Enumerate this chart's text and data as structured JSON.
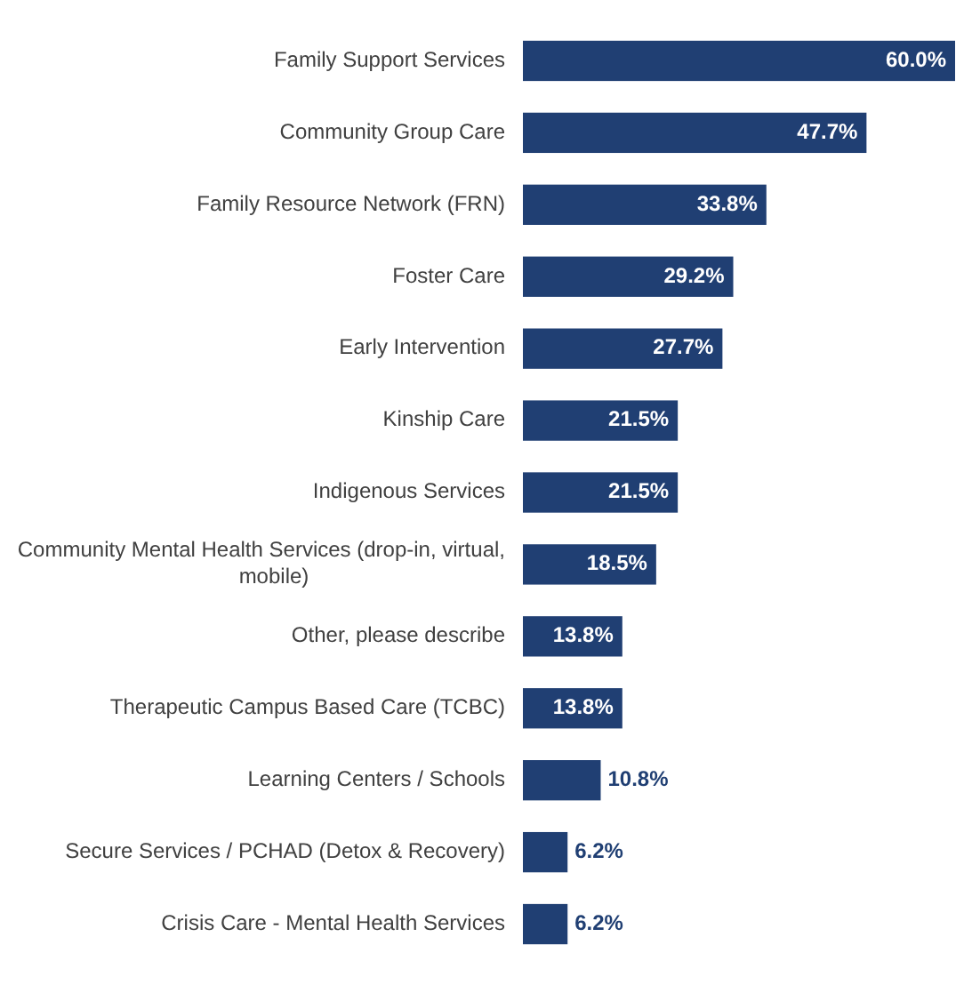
{
  "chart_data": {
    "type": "bar",
    "orientation": "horizontal",
    "categories": [
      "Family Support Services",
      "Community Group Care",
      "Family Resource Network (FRN)",
      "Foster Care",
      "Early Intervention",
      "Kinship Care",
      "Indigenous Services",
      "Community Mental Health Services (drop-in, virtual, mobile)",
      "Other, please describe",
      "Therapeutic Campus Based Care (TCBC)",
      "Learning Centers / Schools",
      "Secure Services / PCHAD (Detox & Recovery)",
      "Crisis Care - Mental Health Services"
    ],
    "values": [
      60.0,
      47.7,
      33.8,
      29.2,
      27.7,
      21.5,
      21.5,
      18.5,
      13.8,
      13.8,
      10.8,
      6.2,
      6.2
    ],
    "value_labels": [
      "60.0%",
      "47.7%",
      "33.8%",
      "29.2%",
      "27.7%",
      "21.5%",
      "21.5%",
      "18.5%",
      "13.8%",
      "13.8%",
      "10.8%",
      "6.2%",
      "6.2%"
    ],
    "color": "#203f73",
    "relative": false
  }
}
